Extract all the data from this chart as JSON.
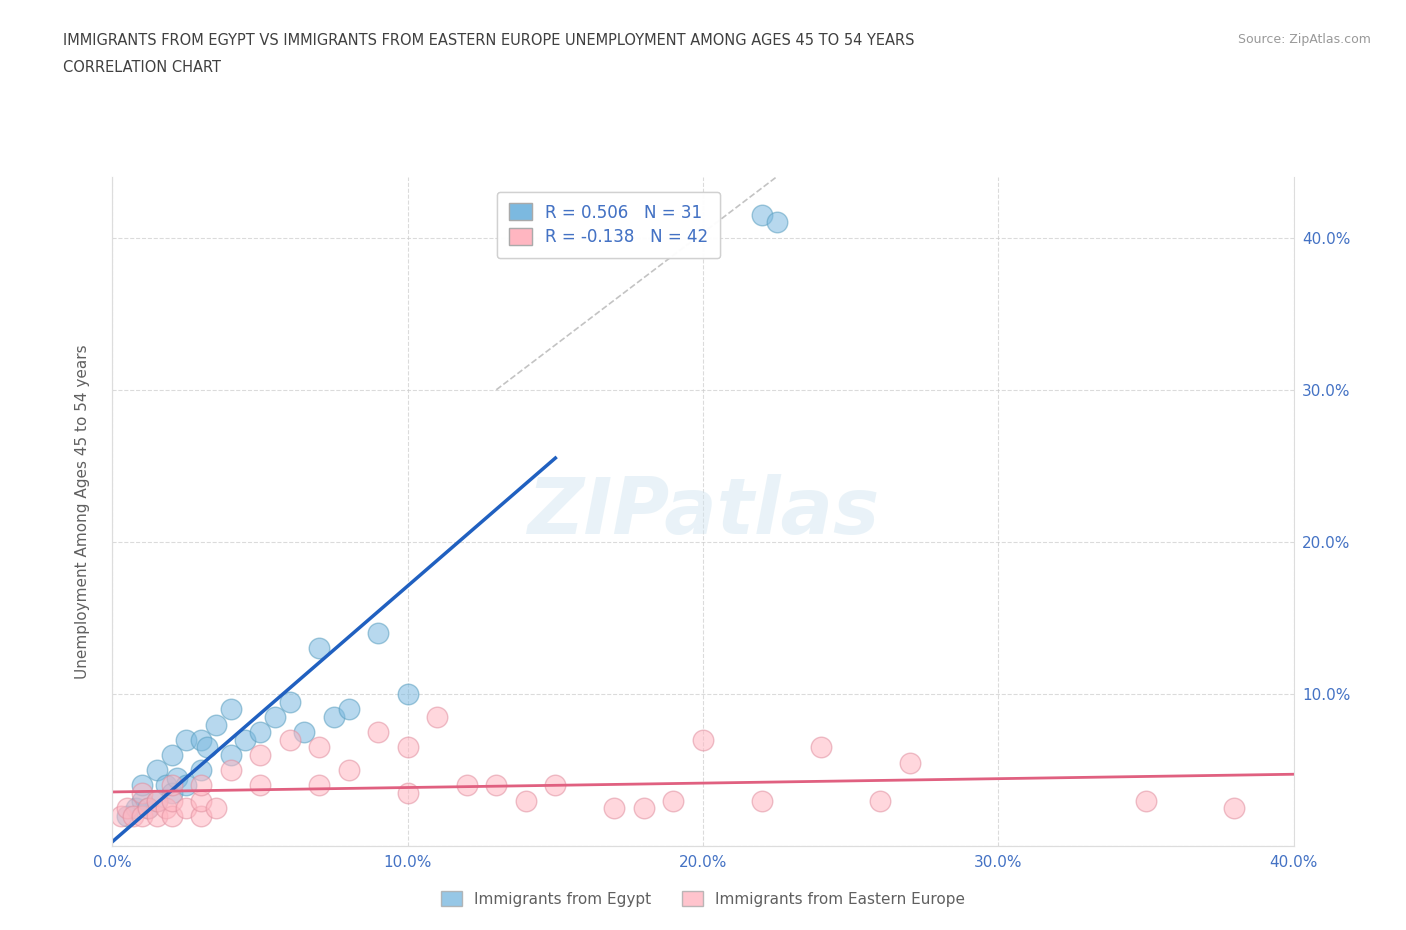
{
  "title_line1": "IMMIGRANTS FROM EGYPT VS IMMIGRANTS FROM EASTERN EUROPE UNEMPLOYMENT AMONG AGES 45 TO 54 YEARS",
  "title_line2": "CORRELATION CHART",
  "source_text": "Source: ZipAtlas.com",
  "ylabel": "Unemployment Among Ages 45 to 54 years",
  "xlim": [
    0.0,
    0.4
  ],
  "ylim": [
    0.0,
    0.44
  ],
  "xticks": [
    0.0,
    0.1,
    0.2,
    0.3,
    0.4
  ],
  "yticks": [
    0.1,
    0.2,
    0.3,
    0.4
  ],
  "xticklabels": [
    "0.0%",
    "10.0%",
    "20.0%",
    "30.0%",
    "40.0%"
  ],
  "yticklabels_right": [
    "10.0%",
    "20.0%",
    "30.0%",
    "40.0%"
  ],
  "egypt_color": "#7cb9e0",
  "egypt_edge_color": "#5a9fc0",
  "eastern_europe_color": "#ffb6c1",
  "eastern_europe_edge_color": "#e090a0",
  "egypt_line_color": "#2060c0",
  "eastern_europe_line_color": "#e06080",
  "egypt_R": 0.506,
  "egypt_N": 31,
  "eastern_europe_R": -0.138,
  "eastern_europe_N": 42,
  "watermark": "ZIPatlas",
  "egypt_scatter_x": [
    0.005,
    0.008,
    0.01,
    0.01,
    0.012,
    0.015,
    0.015,
    0.018,
    0.02,
    0.02,
    0.022,
    0.025,
    0.025,
    0.03,
    0.03,
    0.032,
    0.035,
    0.04,
    0.04,
    0.045,
    0.05,
    0.055,
    0.06,
    0.065,
    0.07,
    0.075,
    0.08,
    0.09,
    0.1,
    0.22,
    0.225
  ],
  "egypt_scatter_y": [
    0.02,
    0.025,
    0.03,
    0.04,
    0.025,
    0.03,
    0.05,
    0.04,
    0.035,
    0.06,
    0.045,
    0.04,
    0.07,
    0.05,
    0.07,
    0.065,
    0.08,
    0.06,
    0.09,
    0.07,
    0.075,
    0.085,
    0.095,
    0.075,
    0.13,
    0.085,
    0.09,
    0.14,
    0.1,
    0.415,
    0.41
  ],
  "eastern_europe_scatter_x": [
    0.003,
    0.005,
    0.007,
    0.01,
    0.01,
    0.012,
    0.015,
    0.015,
    0.018,
    0.02,
    0.02,
    0.02,
    0.025,
    0.03,
    0.03,
    0.03,
    0.035,
    0.04,
    0.05,
    0.05,
    0.06,
    0.07,
    0.07,
    0.08,
    0.09,
    0.1,
    0.1,
    0.11,
    0.12,
    0.13,
    0.14,
    0.15,
    0.17,
    0.18,
    0.19,
    0.2,
    0.22,
    0.24,
    0.26,
    0.27,
    0.35,
    0.38
  ],
  "eastern_europe_scatter_y": [
    0.02,
    0.025,
    0.02,
    0.02,
    0.035,
    0.025,
    0.02,
    0.03,
    0.025,
    0.02,
    0.03,
    0.04,
    0.025,
    0.02,
    0.03,
    0.04,
    0.025,
    0.05,
    0.04,
    0.06,
    0.07,
    0.04,
    0.065,
    0.05,
    0.075,
    0.035,
    0.065,
    0.085,
    0.04,
    0.04,
    0.03,
    0.04,
    0.025,
    0.025,
    0.03,
    0.07,
    0.03,
    0.065,
    0.03,
    0.055,
    0.03,
    0.025
  ],
  "background_color": "#ffffff",
  "grid_color": "#cccccc",
  "title_color": "#404040",
  "axis_label_color": "#606060",
  "tick_color": "#4472c4",
  "legend_R_color": "#4472c4"
}
